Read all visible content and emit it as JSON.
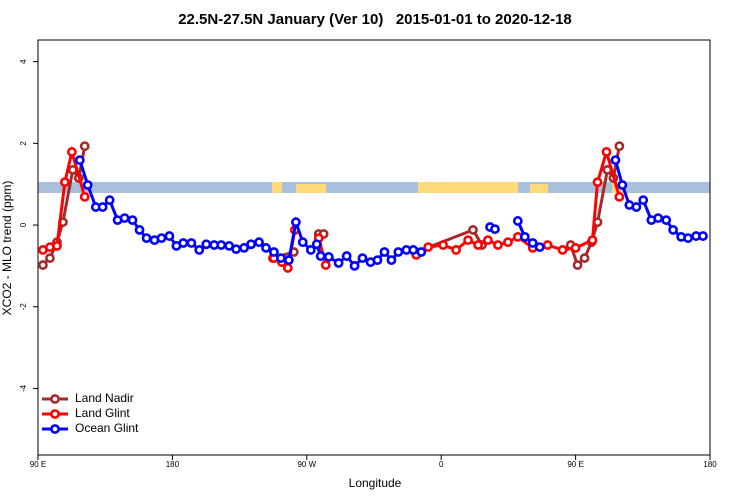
{
  "chart_data": {
    "type": "line",
    "title": "22.5N-27.5N January (Ver 10)   2015-01-01 to 2020-12-18",
    "xlabel": "Longitude",
    "ylabel": "XCO2 - MLO trend (ppm)",
    "xlim": [
      90,
      540
    ],
    "ylim": [
      -5.63,
      4.53
    ],
    "xticks": [
      {
        "value": 90,
        "label": "90 E"
      },
      180,
      {
        "value": 270,
        "label": "90 W"
      },
      {
        "value": 360,
        "label": "0"
      },
      {
        "value": 450,
        "label": "90 E"
      },
      {
        "value": 540,
        "label": "180"
      }
    ],
    "yticks": [
      4,
      2,
      0,
      -2,
      -4
    ],
    "legend": "bottom-left",
    "series": [
      {
        "name": "Land Nadir",
        "color": "#a52a2a",
        "x": [
          93.3,
          98,
          102.7,
          106.7,
          113.3,
          117.3,
          121.3,
          180,
          247.3,
          261.3,
          270,
          278,
          281.3,
          310,
          343.3,
          381.3,
          387.3,
          420,
          446.7,
          451.3,
          456,
          460.7,
          464.7,
          471.3,
          475.3,
          479.3
        ],
        "values": [
          -0.98,
          -0.81,
          -0.42,
          0.07,
          1.35,
          1.15,
          1.93,
          null,
          -0.81,
          -0.66,
          null,
          -0.22,
          -0.22,
          null,
          -0.66,
          -0.12,
          -0.49,
          null,
          -0.49,
          -0.98,
          -0.81,
          -0.42,
          0.07,
          1.35,
          1.15,
          1.93
        ]
      },
      {
        "name": "Land Glint",
        "color": "#ff0000",
        "x": [
          93.3,
          98,
          102.7,
          108,
          112.7,
          121.3,
          180,
          248,
          253.3,
          257.3,
          262,
          270,
          278,
          282.7,
          310,
          343.3,
          351.3,
          361.3,
          370,
          378,
          384.7,
          391.3,
          398,
          404.7,
          411.3,
          421.3,
          431.3,
          441.3,
          450,
          461.3,
          464.7,
          470.7,
          479.3
        ],
        "values": [
          -0.61,
          -0.54,
          -0.51,
          1.05,
          1.79,
          0.69,
          null,
          -0.81,
          -0.91,
          -1.05,
          -0.12,
          null,
          -0.32,
          -0.98,
          null,
          -0.73,
          -0.54,
          -0.49,
          -0.61,
          -0.37,
          -0.49,
          -0.37,
          -0.49,
          -0.42,
          -0.29,
          -0.56,
          -0.49,
          -0.61,
          -0.56,
          -0.37,
          1.05,
          1.79,
          0.69
        ]
      },
      {
        "name": "Ocean Glint",
        "color": "#0000ff",
        "x": [
          118,
          123.3,
          128.7,
          133.3,
          138,
          143.3,
          148,
          153.3,
          158,
          162.7,
          168,
          172.7,
          178,
          182.7,
          187.3,
          192.7,
          198,
          202.7,
          208,
          212.7,
          218,
          222.7,
          228,
          232.7,
          238,
          242.7,
          248,
          252.7,
          258,
          262.7,
          267.3,
          272.7,
          276.7,
          279.3,
          284.7,
          291.3,
          296.7,
          302,
          307.3,
          312.7,
          317.3,
          322,
          326.7,
          331.3,
          336.7,
          341.3,
          346.7,
          370,
          392.7,
          396,
          405,
          411.3,
          416,
          421.3,
          426,
          450,
          476.7,
          481.3,
          486,
          490.7,
          495.3,
          500.7,
          505.3,
          510.7,
          515.3,
          520.7,
          525.3,
          530.7,
          535.3
        ],
        "values": [
          1.59,
          0.98,
          0.44,
          0.44,
          0.61,
          0.12,
          0.17,
          0.12,
          -0.12,
          -0.32,
          -0.37,
          -0.32,
          -0.27,
          -0.51,
          -0.44,
          -0.44,
          -0.61,
          -0.47,
          -0.49,
          -0.49,
          -0.51,
          -0.59,
          -0.56,
          -0.47,
          -0.42,
          -0.56,
          -0.66,
          -0.81,
          -0.86,
          0.07,
          -0.42,
          -0.61,
          -0.47,
          -0.76,
          -0.78,
          -0.93,
          -0.76,
          -1.0,
          -0.81,
          -0.91,
          -0.86,
          -0.66,
          -0.86,
          -0.66,
          -0.61,
          -0.61,
          -0.66,
          null,
          -0.05,
          -0.1,
          null,
          0.1,
          -0.29,
          -0.44,
          -0.54,
          null,
          1.59,
          0.98,
          0.49,
          0.44,
          0.61,
          0.12,
          0.17,
          0.12,
          -0.12,
          -0.29,
          -0.32,
          -0.27,
          -0.27
        ]
      }
    ]
  }
}
